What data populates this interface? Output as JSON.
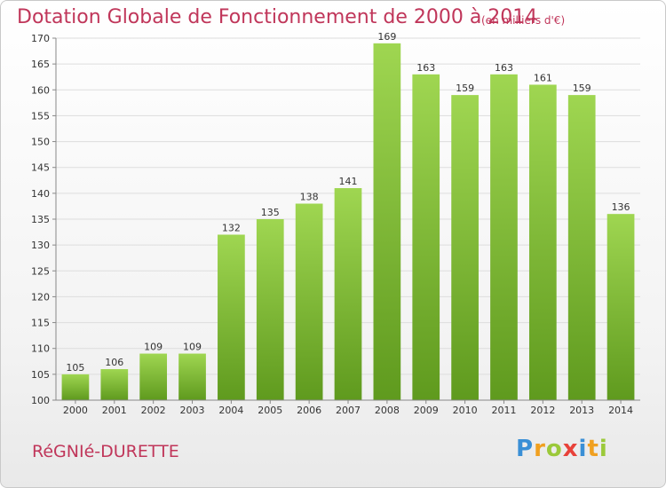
{
  "title": "Dotation Globale de Fonctionnement de 2000 à 2014",
  "subtitle": "(en milliers d'€)",
  "commune": "RéGNIé-DURETTE",
  "logo": {
    "letters": [
      "P",
      "r",
      "o",
      "x",
      "i",
      "t",
      "i"
    ]
  },
  "colors": {
    "bar_top": "#9fd651",
    "bar_bottom": "#5f9a1e",
    "title": "#c0365a",
    "grid": "#dddddd"
  },
  "chart_data": {
    "type": "bar",
    "categories": [
      "2000",
      "2001",
      "2002",
      "2003",
      "2004",
      "2005",
      "2006",
      "2007",
      "2008",
      "2009",
      "2010",
      "2011",
      "2012",
      "2013",
      "2014"
    ],
    "values": [
      105,
      106,
      109,
      109,
      132,
      135,
      138,
      141,
      169,
      163,
      159,
      163,
      161,
      159,
      136
    ],
    "ylim": [
      100,
      170
    ],
    "yticks": [
      100,
      105,
      110,
      115,
      120,
      125,
      130,
      135,
      140,
      145,
      150,
      155,
      160,
      165,
      170
    ],
    "xlabel": "",
    "ylabel": "",
    "grid": true,
    "data_labels": true
  }
}
